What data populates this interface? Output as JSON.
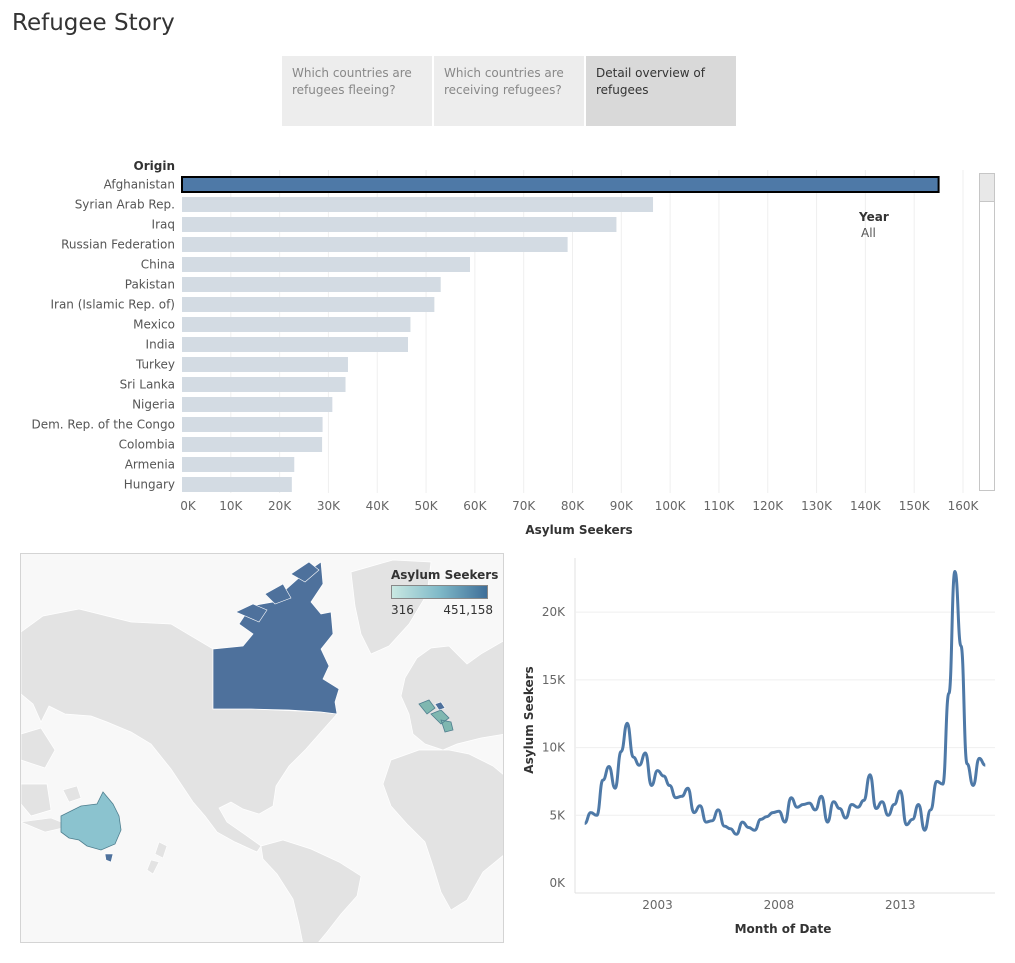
{
  "page": {
    "title": "Refugee Story"
  },
  "tabs": [
    {
      "label": "Which countries are refugees fleeing?",
      "active": false
    },
    {
      "label": "Which countries are receiving refugees?",
      "active": false
    },
    {
      "label": "Detail overview of refugees",
      "active": true
    }
  ],
  "filter": {
    "label": "Year",
    "value": "All"
  },
  "colors": {
    "selected_bar": "#4e79a7",
    "bar": "#d3dbe3",
    "line": "#4e79a7",
    "land": "#e3e3e3",
    "water": "#f8f8f8"
  },
  "chart_data": [
    {
      "type": "bar",
      "orientation": "horizontal",
      "title": "",
      "category_header": "Origin",
      "xlabel": "Asylum Seekers",
      "categories": [
        "Afghanistan",
        "Syrian Arab Rep.",
        "Iraq",
        "Russian Federation",
        "China",
        "Pakistan",
        "Iran (Islamic Rep. of)",
        "Mexico",
        "India",
        "Turkey",
        "Sri Lanka",
        "Nigeria",
        "Dem. Rep. of the Congo",
        "Colombia",
        "Armenia",
        "Hungary"
      ],
      "values": [
        155000,
        96500,
        89000,
        79000,
        59000,
        53000,
        51700,
        46800,
        46300,
        34000,
        33500,
        30800,
        28800,
        28700,
        23000,
        22500
      ],
      "selected": "Afghanistan",
      "xlim": [
        0,
        160000
      ],
      "xticks": [
        0,
        10000,
        20000,
        30000,
        40000,
        50000,
        60000,
        70000,
        80000,
        90000,
        100000,
        110000,
        120000,
        130000,
        140000,
        150000,
        160000
      ],
      "xtick_labels": [
        "0K",
        "10K",
        "20K",
        "30K",
        "40K",
        "50K",
        "60K",
        "70K",
        "80K",
        "90K",
        "100K",
        "110K",
        "120K",
        "130K",
        "140K",
        "150K",
        "160K"
      ],
      "grid": true
    },
    {
      "type": "map",
      "legend_title": "Asylum Seekers",
      "legend_min": "316",
      "legend_max": "451,158",
      "highlighted_regions": [
        {
          "name": "Canada",
          "color": "#4e719c"
        },
        {
          "name": "Australia",
          "color": "#8bc3cf"
        },
        {
          "name": "Europe (selected countries)",
          "color": "#7fb7b0"
        }
      ]
    },
    {
      "type": "line",
      "title": "",
      "xlabel": "Month of Date",
      "ylabel": "Asylum Seekers",
      "xticks": [
        "2003",
        "2008",
        "2013"
      ],
      "yticks": [
        0,
        5000,
        10000,
        15000,
        20000
      ],
      "ytick_labels": [
        "0K",
        "5K",
        "10K",
        "15K",
        "20K"
      ],
      "ylim": [
        0,
        24000
      ],
      "xlim": [
        1999.6,
        2016.9
      ],
      "series": [
        {
          "x": [
            2000.0,
            2000.25,
            2000.5,
            2000.75,
            2001.0,
            2001.25,
            2001.5,
            2001.75,
            2002.0,
            2002.25,
            2002.5,
            2002.75,
            2003.0,
            2003.25,
            2003.5,
            2003.75,
            2004.0,
            2004.25,
            2004.5,
            2004.75,
            2005.0,
            2005.25,
            2005.5,
            2005.75,
            2006.0,
            2006.25,
            2006.5,
            2006.75,
            2007.0,
            2007.25,
            2007.5,
            2007.75,
            2008.0,
            2008.25,
            2008.5,
            2008.75,
            2009.0,
            2009.25,
            2009.5,
            2009.75,
            2010.0,
            2010.25,
            2010.5,
            2010.75,
            2011.0,
            2011.25,
            2011.5,
            2011.75,
            2012.0,
            2012.25,
            2012.5,
            2012.75,
            2013.0,
            2013.25,
            2013.5,
            2013.75,
            2014.0,
            2014.25,
            2014.5,
            2014.75,
            2015.0,
            2015.25,
            2015.5,
            2015.75,
            2016.0,
            2016.25,
            2016.5
          ],
          "values": [
            4400,
            5200,
            5000,
            7600,
            8600,
            7000,
            9700,
            11800,
            9300,
            8700,
            9600,
            7200,
            8300,
            7900,
            7200,
            6300,
            6400,
            7000,
            5200,
            5700,
            4500,
            4600,
            5400,
            4200,
            4000,
            3600,
            4500,
            4100,
            3900,
            4700,
            4900,
            5200,
            5300,
            4500,
            6300,
            5600,
            5800,
            5900,
            5400,
            6400,
            4500,
            6000,
            5500,
            4800,
            5800,
            5600,
            6100,
            8000,
            5500,
            6000,
            5000,
            5800,
            6800,
            4300,
            4700,
            5800,
            3900,
            5400,
            7500,
            7300,
            14000,
            23000,
            17500,
            8800,
            7200,
            9200,
            8700
          ]
        }
      ]
    }
  ]
}
